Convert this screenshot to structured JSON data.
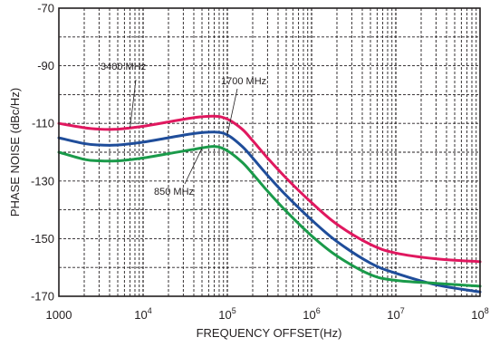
{
  "chart_data": {
    "type": "line",
    "xlabel": "FREQUENCY OFFSET(Hz)",
    "ylabel": "PHASE NOISE (dBc/Hz)",
    "x_scale": "log",
    "xlim": [
      1000,
      100000000
    ],
    "ylim": [
      -170,
      -70
    ],
    "grid": true,
    "x_ticks": [
      {
        "value": 1000,
        "base": "1000",
        "exp": ""
      },
      {
        "value": 10000,
        "base": "10",
        "exp": "4"
      },
      {
        "value": 100000,
        "base": "10",
        "exp": "5"
      },
      {
        "value": 1000000,
        "base": "10",
        "exp": "6"
      },
      {
        "value": 10000000,
        "base": "10",
        "exp": "7"
      },
      {
        "value": 100000000,
        "base": "10",
        "exp": "8"
      }
    ],
    "y_ticks": [
      -70,
      -90,
      -110,
      -130,
      -150,
      -170
    ],
    "series": [
      {
        "name": "3400 MHz",
        "color": "#e0185f",
        "x": [
          1000,
          2000,
          3000,
          5000,
          10000,
          20000,
          40000,
          70000,
          100000,
          150000,
          200000,
          300000,
          500000,
          1000000,
          2000000,
          5000000,
          10000000,
          30000000,
          100000000
        ],
        "y": [
          -110,
          -111.5,
          -112,
          -112,
          -111,
          -109.5,
          -108,
          -107.5,
          -108.5,
          -112,
          -116,
          -122,
          -129,
          -137.5,
          -145,
          -152,
          -155,
          -157,
          -158
        ]
      },
      {
        "name": "1700 MHz",
        "color": "#1f4d9a",
        "x": [
          1000,
          2000,
          3000,
          5000,
          10000,
          20000,
          40000,
          70000,
          100000,
          150000,
          200000,
          300000,
          500000,
          1000000,
          2000000,
          5000000,
          10000000,
          30000000,
          100000000
        ],
        "y": [
          -115,
          -117,
          -117.5,
          -117.5,
          -116.5,
          -115,
          -113.5,
          -113,
          -114,
          -118,
          -122,
          -128,
          -135,
          -143.5,
          -151,
          -158.5,
          -162,
          -166,
          -168.5
        ]
      },
      {
        "name": "850 MHz",
        "color": "#1a9a4a",
        "x": [
          1000,
          2000,
          3000,
          5000,
          10000,
          20000,
          40000,
          70000,
          100000,
          150000,
          200000,
          300000,
          500000,
          1000000,
          2000000,
          5000000,
          10000000,
          30000000,
          100000000
        ],
        "y": [
          -120,
          -122.5,
          -123,
          -123,
          -122,
          -120.5,
          -119,
          -118,
          -119.5,
          -123.5,
          -127.5,
          -133.5,
          -140.5,
          -149,
          -156,
          -162.5,
          -164.5,
          -165.5,
          -166.5
        ]
      }
    ],
    "annotations": [
      {
        "text": "3400 MHz",
        "series": "3400 MHz"
      },
      {
        "text": "1700 MHz",
        "series": "1700 MHz"
      },
      {
        "text": "850 MHz",
        "series": "850 MHz"
      }
    ]
  }
}
